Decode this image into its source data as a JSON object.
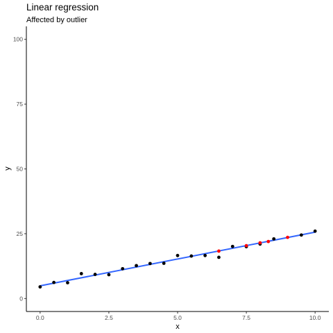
{
  "chart_data": {
    "type": "scatter",
    "title": "Linear regression",
    "subtitle": "Affected by outlier",
    "xlabel": "x",
    "ylabel": "y",
    "xlim": [
      -0.5,
      10.5
    ],
    "ylim": [
      -5,
      105
    ],
    "x_ticks": [
      0.0,
      2.5,
      5.0,
      7.5,
      10.0
    ],
    "x_tick_labels": [
      "0.0",
      "2.5",
      "5.0",
      "7.5",
      "10.0"
    ],
    "y_ticks": [
      0,
      25,
      50,
      75,
      100
    ],
    "y_tick_labels": [
      "0",
      "25",
      "50",
      "75",
      "100"
    ],
    "grid": false,
    "series": [
      {
        "color": "#000000",
        "points": [
          [
            0.0,
            4.5
          ],
          [
            0.5,
            6.2
          ],
          [
            1.0,
            6.1
          ],
          [
            1.5,
            9.6
          ],
          [
            2.0,
            9.3
          ],
          [
            2.5,
            9.2
          ],
          [
            3.0,
            11.5
          ],
          [
            3.5,
            12.7
          ],
          [
            4.0,
            13.5
          ],
          [
            4.5,
            13.6
          ],
          [
            5.0,
            16.6
          ],
          [
            5.5,
            16.4
          ],
          [
            6.0,
            16.6
          ],
          [
            6.5,
            15.9
          ],
          [
            7.0,
            20.1
          ],
          [
            7.5,
            20.0
          ],
          [
            8.0,
            21.0
          ],
          [
            8.5,
            23.0
          ],
          [
            9.5,
            24.5
          ],
          [
            10.0,
            26.0
          ]
        ]
      },
      {
        "color": "#ff0000",
        "points": [
          [
            6.5,
            18.3
          ],
          [
            7.5,
            20.4
          ],
          [
            8.0,
            21.5
          ],
          [
            8.3,
            22.0
          ],
          [
            9.0,
            23.6
          ]
        ]
      }
    ],
    "fit_line": {
      "color": "#3366ff",
      "intercept": 4.9,
      "slope": 2.07
    }
  }
}
